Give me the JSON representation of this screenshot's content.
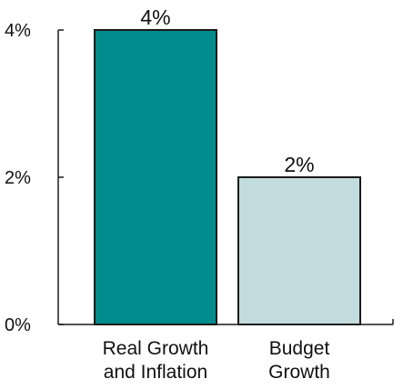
{
  "chart_data": {
    "type": "bar",
    "categories": [
      [
        "Real Growth",
        "and Inflation"
      ],
      [
        "Budget",
        "Growth"
      ]
    ],
    "values": [
      4,
      2
    ],
    "data_labels": [
      "4%",
      "2%"
    ],
    "bar_colors": [
      "#008c8c",
      "#c2dcdd"
    ],
    "bar_outline_color": "#1a1a1a",
    "axis_color": "#1a1a1a",
    "ylim": [
      0,
      4
    ],
    "yticks": [
      0,
      2,
      4
    ],
    "ytick_labels": [
      "0%",
      "2%",
      "4%"
    ],
    "grid": false,
    "legend": "none",
    "title": "",
    "xlabel": "",
    "ylabel": ""
  }
}
